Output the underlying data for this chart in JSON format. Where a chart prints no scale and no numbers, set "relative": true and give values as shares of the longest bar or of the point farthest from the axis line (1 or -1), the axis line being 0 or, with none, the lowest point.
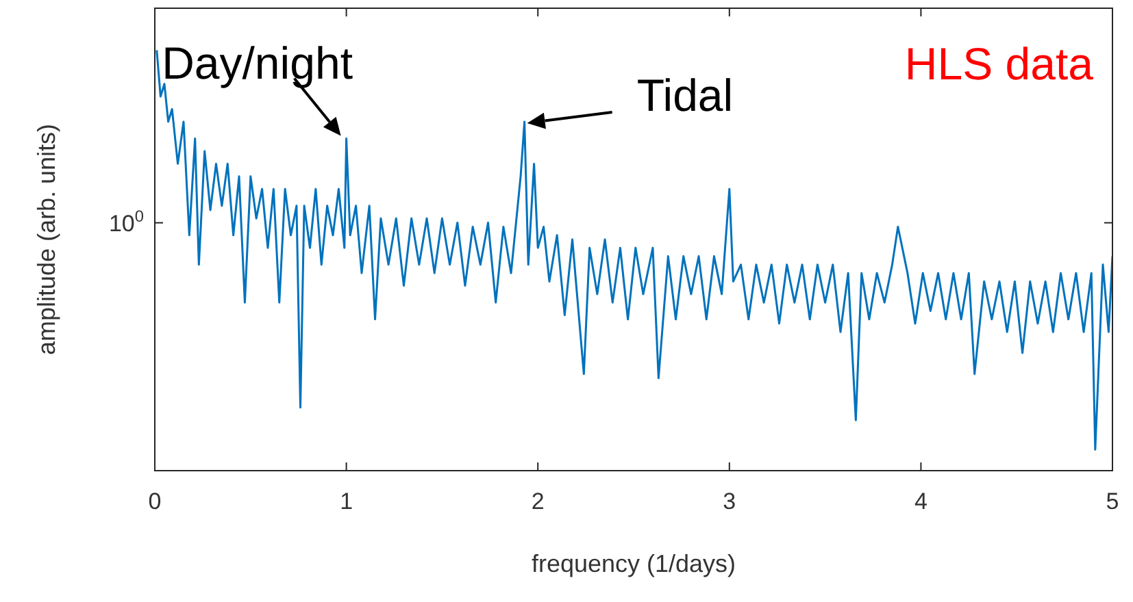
{
  "chart_data": {
    "type": "line",
    "relative": true,
    "xlabel": "frequency (1/days)",
    "ylabel": "amplitude (arb. units)",
    "xlim": [
      0,
      5
    ],
    "xticks": [
      0,
      1,
      2,
      3,
      4,
      5
    ],
    "grid": false,
    "annotations": [
      {
        "text": "Day/night",
        "x": 1.0,
        "y": 0.79
      },
      {
        "text": "Tidal",
        "x": 1.93,
        "y": 0.83
      },
      "HLS data",
      "10$^{0}$"
    ],
    "series": [
      {
        "color": "#0072bd",
        "x": [
          0.01,
          0.03,
          0.05,
          0.07,
          0.09,
          0.12,
          0.15,
          0.18,
          0.21,
          0.23,
          0.26,
          0.29,
          0.32,
          0.35,
          0.38,
          0.41,
          0.44,
          0.47,
          0.5,
          0.53,
          0.56,
          0.59,
          0.62,
          0.65,
          0.68,
          0.71,
          0.74,
          0.76,
          0.78,
          0.81,
          0.84,
          0.87,
          0.9,
          0.93,
          0.96,
          0.99,
          1.0,
          1.02,
          1.05,
          1.08,
          1.12,
          1.15,
          1.18,
          1.22,
          1.26,
          1.3,
          1.34,
          1.38,
          1.42,
          1.46,
          1.5,
          1.54,
          1.58,
          1.62,
          1.66,
          1.7,
          1.74,
          1.78,
          1.82,
          1.86,
          1.91,
          1.93,
          1.95,
          1.98,
          2.0,
          2.03,
          2.06,
          2.1,
          2.14,
          2.18,
          2.24,
          2.27,
          2.31,
          2.35,
          2.39,
          2.43,
          2.47,
          2.51,
          2.55,
          2.6,
          2.63,
          2.68,
          2.72,
          2.76,
          2.8,
          2.84,
          2.88,
          2.92,
          2.96,
          3.0,
          3.02,
          3.06,
          3.1,
          3.14,
          3.18,
          3.22,
          3.26,
          3.3,
          3.34,
          3.38,
          3.42,
          3.46,
          3.5,
          3.54,
          3.58,
          3.62,
          3.66,
          3.69,
          3.73,
          3.77,
          3.81,
          3.85,
          3.88,
          3.93,
          3.97,
          4.01,
          4.05,
          4.09,
          4.13,
          4.17,
          4.21,
          4.25,
          4.28,
          4.33,
          4.37,
          4.41,
          4.45,
          4.49,
          4.53,
          4.57,
          4.61,
          4.65,
          4.69,
          4.73,
          4.77,
          4.81,
          4.85,
          4.89,
          4.91,
          4.95,
          4.98,
          5.0
        ],
        "values": [
          1.0,
          0.89,
          0.92,
          0.83,
          0.86,
          0.73,
          0.83,
          0.56,
          0.79,
          0.49,
          0.76,
          0.62,
          0.73,
          0.63,
          0.73,
          0.56,
          0.7,
          0.4,
          0.7,
          0.6,
          0.67,
          0.53,
          0.67,
          0.4,
          0.67,
          0.56,
          0.63,
          0.15,
          0.63,
          0.53,
          0.67,
          0.49,
          0.63,
          0.56,
          0.67,
          0.53,
          0.79,
          0.56,
          0.63,
          0.47,
          0.63,
          0.36,
          0.6,
          0.49,
          0.6,
          0.44,
          0.6,
          0.49,
          0.6,
          0.47,
          0.6,
          0.49,
          0.59,
          0.44,
          0.58,
          0.49,
          0.59,
          0.4,
          0.58,
          0.47,
          0.7,
          0.83,
          0.49,
          0.73,
          0.53,
          0.58,
          0.45,
          0.56,
          0.37,
          0.55,
          0.23,
          0.53,
          0.42,
          0.55,
          0.4,
          0.53,
          0.36,
          0.53,
          0.42,
          0.53,
          0.22,
          0.51,
          0.36,
          0.51,
          0.42,
          0.51,
          0.36,
          0.51,
          0.42,
          0.67,
          0.45,
          0.49,
          0.36,
          0.49,
          0.4,
          0.49,
          0.35,
          0.49,
          0.4,
          0.49,
          0.36,
          0.49,
          0.4,
          0.49,
          0.33,
          0.47,
          0.12,
          0.47,
          0.36,
          0.47,
          0.4,
          0.49,
          0.58,
          0.47,
          0.35,
          0.47,
          0.38,
          0.47,
          0.36,
          0.47,
          0.36,
          0.47,
          0.23,
          0.45,
          0.36,
          0.45,
          0.33,
          0.45,
          0.28,
          0.45,
          0.35,
          0.45,
          0.33,
          0.47,
          0.36,
          0.47,
          0.33,
          0.47,
          0.05,
          0.49,
          0.33,
          0.51
        ]
      }
    ]
  }
}
